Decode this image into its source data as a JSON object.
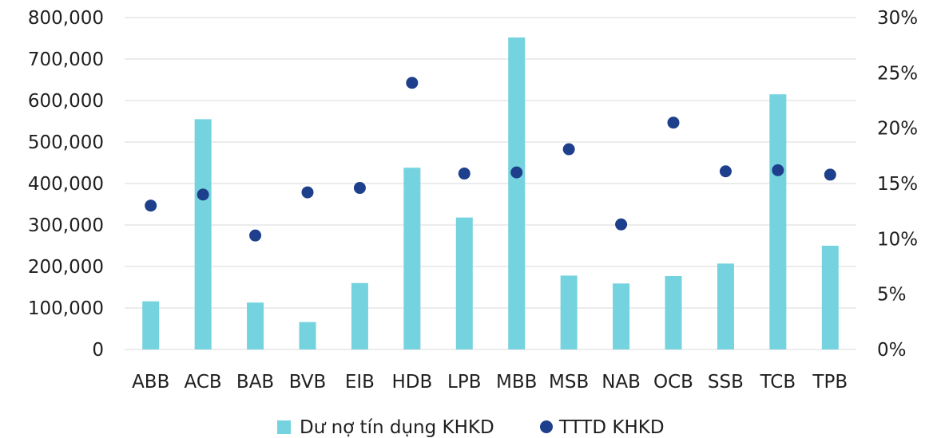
{
  "chart_data": {
    "type": "bar",
    "categories": [
      "ABB",
      "ACB",
      "BAB",
      "BVB",
      "EIB",
      "HDB",
      "LPB",
      "MBB",
      "MSB",
      "NAB",
      "OCB",
      "SSB",
      "TCB",
      "TPB"
    ],
    "series": [
      {
        "name": "Dư nợ tín dụng KHKD",
        "type": "bar",
        "axis": "left",
        "color": "#74D3DF",
        "values": [
          116000,
          555000,
          113000,
          66000,
          160000,
          438000,
          318000,
          752000,
          178000,
          159000,
          177000,
          207000,
          615000,
          250000
        ]
      },
      {
        "name": "TTTD KHKD",
        "type": "scatter",
        "axis": "right",
        "color": "#1E3F8C",
        "values": [
          0.13,
          0.14,
          0.103,
          0.142,
          0.146,
          0.241,
          0.159,
          0.16,
          0.181,
          0.113,
          0.205,
          0.161,
          0.162,
          0.158
        ]
      }
    ],
    "y_left": {
      "ylim": [
        0,
        800000
      ],
      "ticks": [
        "0",
        "100,000",
        "200,000",
        "300,000",
        "400,000",
        "500,000",
        "600,000",
        "700,000",
        "800,000"
      ]
    },
    "y_right": {
      "ylim": [
        0,
        0.3
      ],
      "ticks": [
        "0%",
        "5%",
        "10%",
        "15%",
        "20%",
        "25%",
        "30%"
      ]
    },
    "grid": true,
    "legend": "bottom",
    "gridline_color": "#D9D9D9"
  }
}
